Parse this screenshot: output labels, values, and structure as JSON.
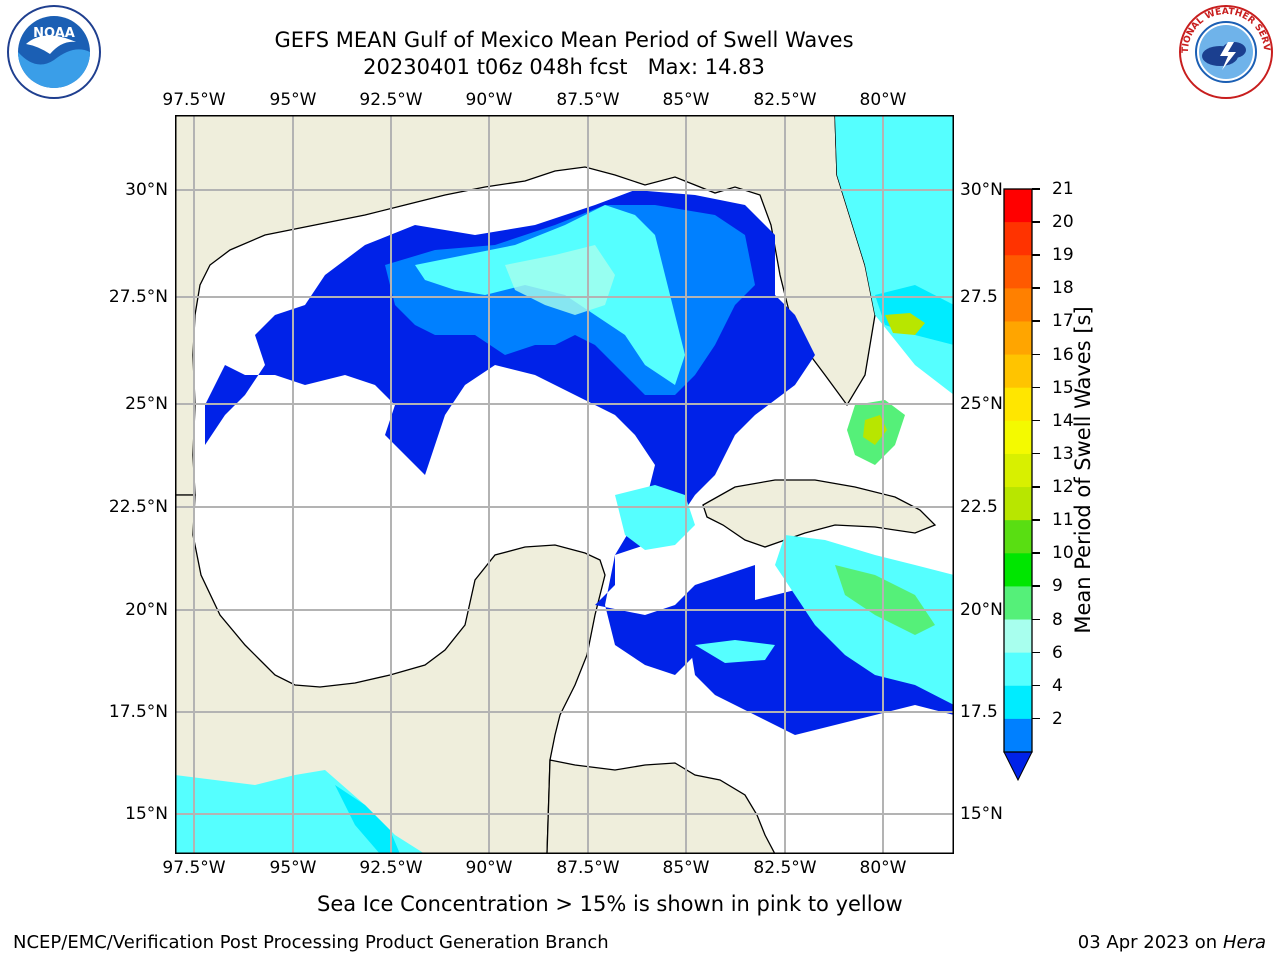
{
  "header": {
    "title_line1": "GEFS MEAN Gulf of Mexico Mean Period of Swell Waves",
    "title_line2": "20230401 t06z 048h fcst   Max: 14.83"
  },
  "logos": {
    "left": {
      "text": "NOAA",
      "icon": "noaa-logo"
    },
    "right": {
      "text": "NATIONAL WEATHER SERVICE",
      "icon": "nws-logo"
    }
  },
  "map": {
    "lon_labels": [
      "97.5°W",
      "95°W",
      "92.5°W",
      "90°W",
      "87.5°W",
      "85°W",
      "82.5°W",
      "80°W"
    ],
    "lat_labels_left": [
      "30°N",
      "27.5°N",
      "25°N",
      "22.5°N",
      "20°N",
      "17.5°N",
      "15°N"
    ],
    "lat_labels_right": [
      "30°N",
      "27.5",
      "25°N",
      "22.5",
      "20°N",
      "17.5",
      "15°N"
    ],
    "land_color": "#efeedc",
    "ocean_color": "#ffffff"
  },
  "colorbar": {
    "label": "Mean Period of Swell Waves [s]",
    "ticks": [
      "21",
      "20",
      "19",
      "18",
      "17",
      "16",
      "15",
      "14",
      "13",
      "12",
      "11",
      "10",
      "9",
      "8",
      "6",
      "4",
      "2"
    ],
    "colors_top_to_bottom": [
      "#ff0000",
      "#ff3300",
      "#ff5a00",
      "#ff8000",
      "#ffa500",
      "#ffc400",
      "#ffe600",
      "#f4fa00",
      "#d8f000",
      "#b8e600",
      "#59de12",
      "#00e600",
      "#55f079",
      "#a8ffee",
      "#55ffff",
      "#00ecff",
      "#0080ff"
    ],
    "extend_color": "#0022e8"
  },
  "notes": {
    "sea_ice": "Sea Ice Concentration > 15% is shown in pink to yellow"
  },
  "footer": {
    "left": "NCEP/EMC/Verification Post Processing Product Generation Branch",
    "right_prefix": "03 Apr 2023 on ",
    "right_host": "Hera"
  }
}
